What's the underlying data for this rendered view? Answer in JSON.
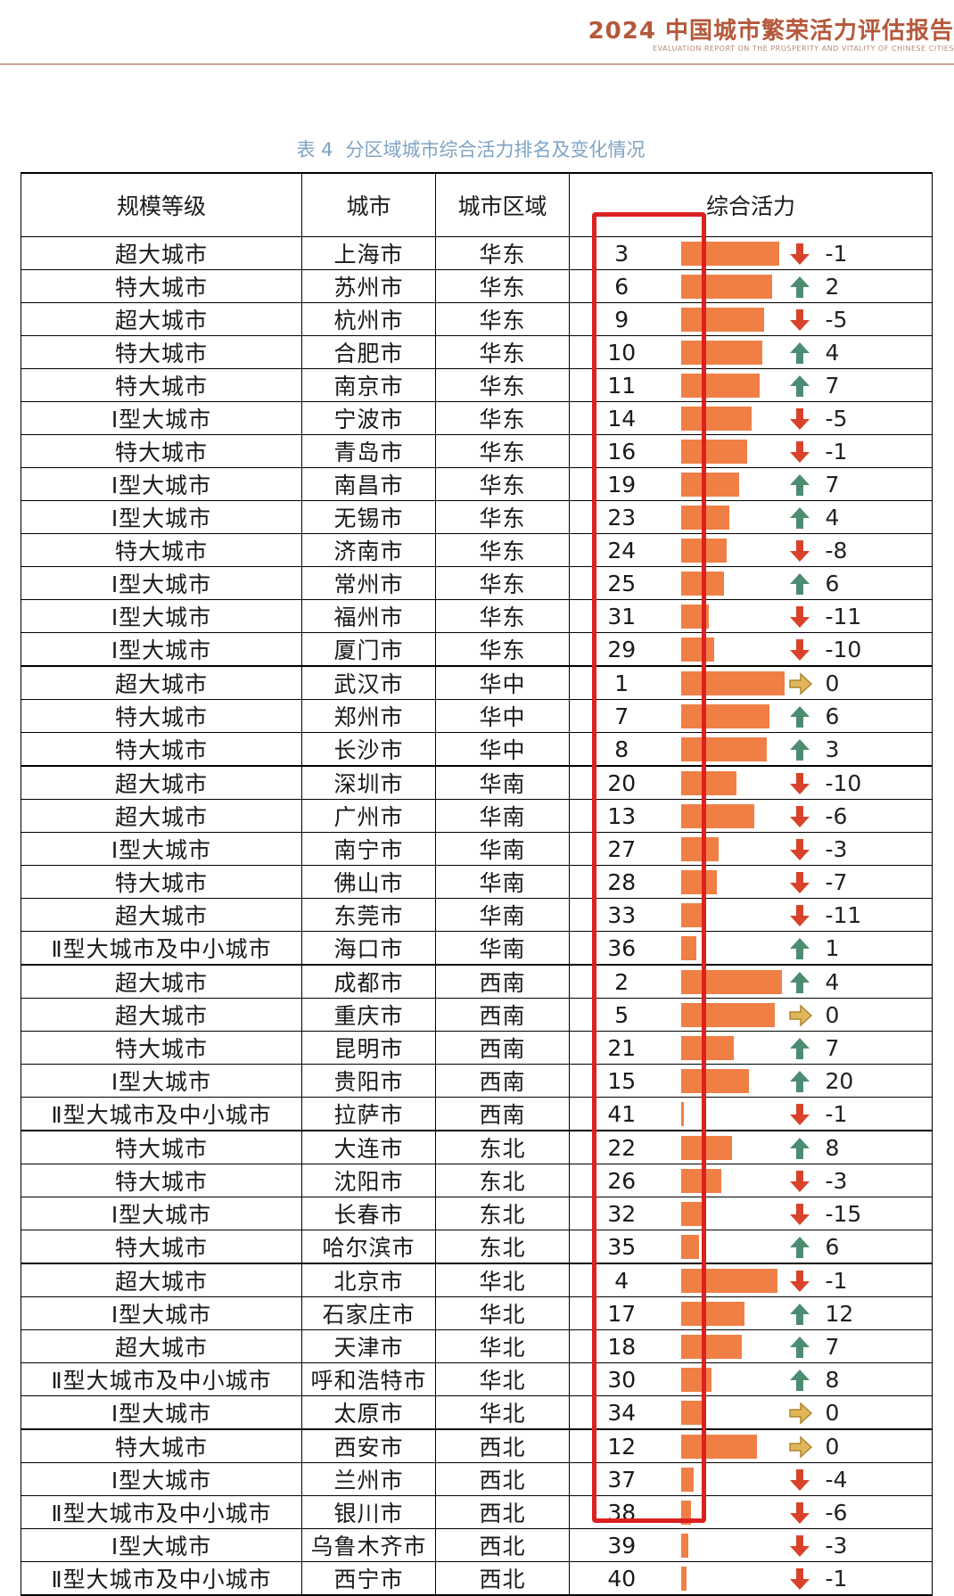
{
  "header": {
    "report_title": "2024 中国城市繁荣活力评估报告",
    "report_subtitle": "EVALUATION REPORT ON THE PROSPERITY AND VITALITY OF CHINESE CITIES"
  },
  "table": {
    "caption_num": "表 4",
    "caption_text": "分区域城市综合活力排名及变化情况",
    "headers": [
      "规模等级",
      "城市",
      "城市区域",
      "综合活力"
    ],
    "colors": {
      "bar": "#f07f45",
      "up": "#4c8d72",
      "down": "#d9422a",
      "flat": "#e0b65a",
      "highlight": "#dd2020"
    },
    "rows": [
      {
        "level": "超大城市",
        "city": "上海市",
        "region": "华东",
        "rank": "3",
        "change": "-1",
        "dir": "down"
      },
      {
        "level": "特大城市",
        "city": "苏州市",
        "region": "华东",
        "rank": "6",
        "change": "2",
        "dir": "up"
      },
      {
        "level": "超大城市",
        "city": "杭州市",
        "region": "华东",
        "rank": "9",
        "change": "-5",
        "dir": "down"
      },
      {
        "level": "特大城市",
        "city": "合肥市",
        "region": "华东",
        "rank": "10",
        "change": "4",
        "dir": "up"
      },
      {
        "level": "特大城市",
        "city": "南京市",
        "region": "华东",
        "rank": "11",
        "change": "7",
        "dir": "up"
      },
      {
        "level": "Ⅰ型大城市",
        "city": "宁波市",
        "region": "华东",
        "rank": "14",
        "change": "-5",
        "dir": "down"
      },
      {
        "level": "特大城市",
        "city": "青岛市",
        "region": "华东",
        "rank": "16",
        "change": "-1",
        "dir": "down"
      },
      {
        "level": "Ⅰ型大城市",
        "city": "南昌市",
        "region": "华东",
        "rank": "19",
        "change": "7",
        "dir": "up"
      },
      {
        "level": "Ⅰ型大城市",
        "city": "无锡市",
        "region": "华东",
        "rank": "23",
        "change": "4",
        "dir": "up"
      },
      {
        "level": "特大城市",
        "city": "济南市",
        "region": "华东",
        "rank": "24",
        "change": "-8",
        "dir": "down"
      },
      {
        "level": "Ⅰ型大城市",
        "city": "常州市",
        "region": "华东",
        "rank": "25",
        "change": "6",
        "dir": "up"
      },
      {
        "level": "Ⅰ型大城市",
        "city": "福州市",
        "region": "华东",
        "rank": "31",
        "change": "-11",
        "dir": "down"
      },
      {
        "level": "Ⅰ型大城市",
        "city": "厦门市",
        "region": "华东",
        "rank": "29",
        "change": "-10",
        "dir": "down"
      },
      {
        "level": "超大城市",
        "city": "武汉市",
        "region": "华中",
        "rank": "1",
        "change": "0",
        "dir": "flat"
      },
      {
        "level": "特大城市",
        "city": "郑州市",
        "region": "华中",
        "rank": "7",
        "change": "6",
        "dir": "up"
      },
      {
        "level": "特大城市",
        "city": "长沙市",
        "region": "华中",
        "rank": "8",
        "change": "3",
        "dir": "up"
      },
      {
        "level": "超大城市",
        "city": "深圳市",
        "region": "华南",
        "rank": "20",
        "change": "-10",
        "dir": "down"
      },
      {
        "level": "超大城市",
        "city": "广州市",
        "region": "华南",
        "rank": "13",
        "change": "-6",
        "dir": "down"
      },
      {
        "level": "Ⅰ型大城市",
        "city": "南宁市",
        "region": "华南",
        "rank": "27",
        "change": "-3",
        "dir": "down"
      },
      {
        "level": "特大城市",
        "city": "佛山市",
        "region": "华南",
        "rank": "28",
        "change": "-7",
        "dir": "down"
      },
      {
        "level": "超大城市",
        "city": "东莞市",
        "region": "华南",
        "rank": "33",
        "change": "-11",
        "dir": "down"
      },
      {
        "level": "Ⅱ型大城市及中小城市",
        "city": "海口市",
        "region": "华南",
        "rank": "36",
        "change": "1",
        "dir": "up"
      },
      {
        "level": "超大城市",
        "city": "成都市",
        "region": "西南",
        "rank": "2",
        "change": "4",
        "dir": "up"
      },
      {
        "level": "超大城市",
        "city": "重庆市",
        "region": "西南",
        "rank": "5",
        "change": "0",
        "dir": "flat"
      },
      {
        "level": "特大城市",
        "city": "昆明市",
        "region": "西南",
        "rank": "21",
        "change": "7",
        "dir": "up"
      },
      {
        "level": "Ⅰ型大城市",
        "city": "贵阳市",
        "region": "西南",
        "rank": "15",
        "change": "20",
        "dir": "up"
      },
      {
        "level": "Ⅱ型大城市及中小城市",
        "city": "拉萨市",
        "region": "西南",
        "rank": "41",
        "change": "-1",
        "dir": "down"
      },
      {
        "level": "特大城市",
        "city": "大连市",
        "region": "东北",
        "rank": "22",
        "change": "8",
        "dir": "up"
      },
      {
        "level": "特大城市",
        "city": "沈阳市",
        "region": "东北",
        "rank": "26",
        "change": "-3",
        "dir": "down"
      },
      {
        "level": "Ⅰ型大城市",
        "city": "长春市",
        "region": "东北",
        "rank": "32",
        "change": "-15",
        "dir": "down"
      },
      {
        "level": "特大城市",
        "city": "哈尔滨市",
        "region": "东北",
        "rank": "35",
        "change": "6",
        "dir": "up"
      },
      {
        "level": "超大城市",
        "city": "北京市",
        "region": "华北",
        "rank": "4",
        "change": "-1",
        "dir": "down"
      },
      {
        "level": "Ⅰ型大城市",
        "city": "石家庄市",
        "region": "华北",
        "rank": "17",
        "change": "12",
        "dir": "up"
      },
      {
        "level": "超大城市",
        "city": "天津市",
        "region": "华北",
        "rank": "18",
        "change": "7",
        "dir": "up"
      },
      {
        "level": "Ⅱ型大城市及中小城市",
        "city": "呼和浩特市",
        "region": "华北",
        "rank": "30",
        "change": "8",
        "dir": "up"
      },
      {
        "level": "Ⅰ型大城市",
        "city": "太原市",
        "region": "华北",
        "rank": "34",
        "change": "0",
        "dir": "flat"
      },
      {
        "level": "特大城市",
        "city": "西安市",
        "region": "西北",
        "rank": "12",
        "change": "0",
        "dir": "flat"
      },
      {
        "level": "Ⅰ型大城市",
        "city": "兰州市",
        "region": "西北",
        "rank": "37",
        "change": "-4",
        "dir": "down"
      },
      {
        "level": "Ⅱ型大城市及中小城市",
        "city": "银川市",
        "region": "西北",
        "rank": "38",
        "change": "-6",
        "dir": "down"
      },
      {
        "level": "Ⅰ型大城市",
        "city": "乌鲁木齐市",
        "region": "西北",
        "rank": "39",
        "change": "-3",
        "dir": "down"
      },
      {
        "level": "Ⅱ型大城市及中小城市",
        "city": "西宁市",
        "region": "西北",
        "rank": "40",
        "change": "-1",
        "dir": "down"
      }
    ]
  }
}
